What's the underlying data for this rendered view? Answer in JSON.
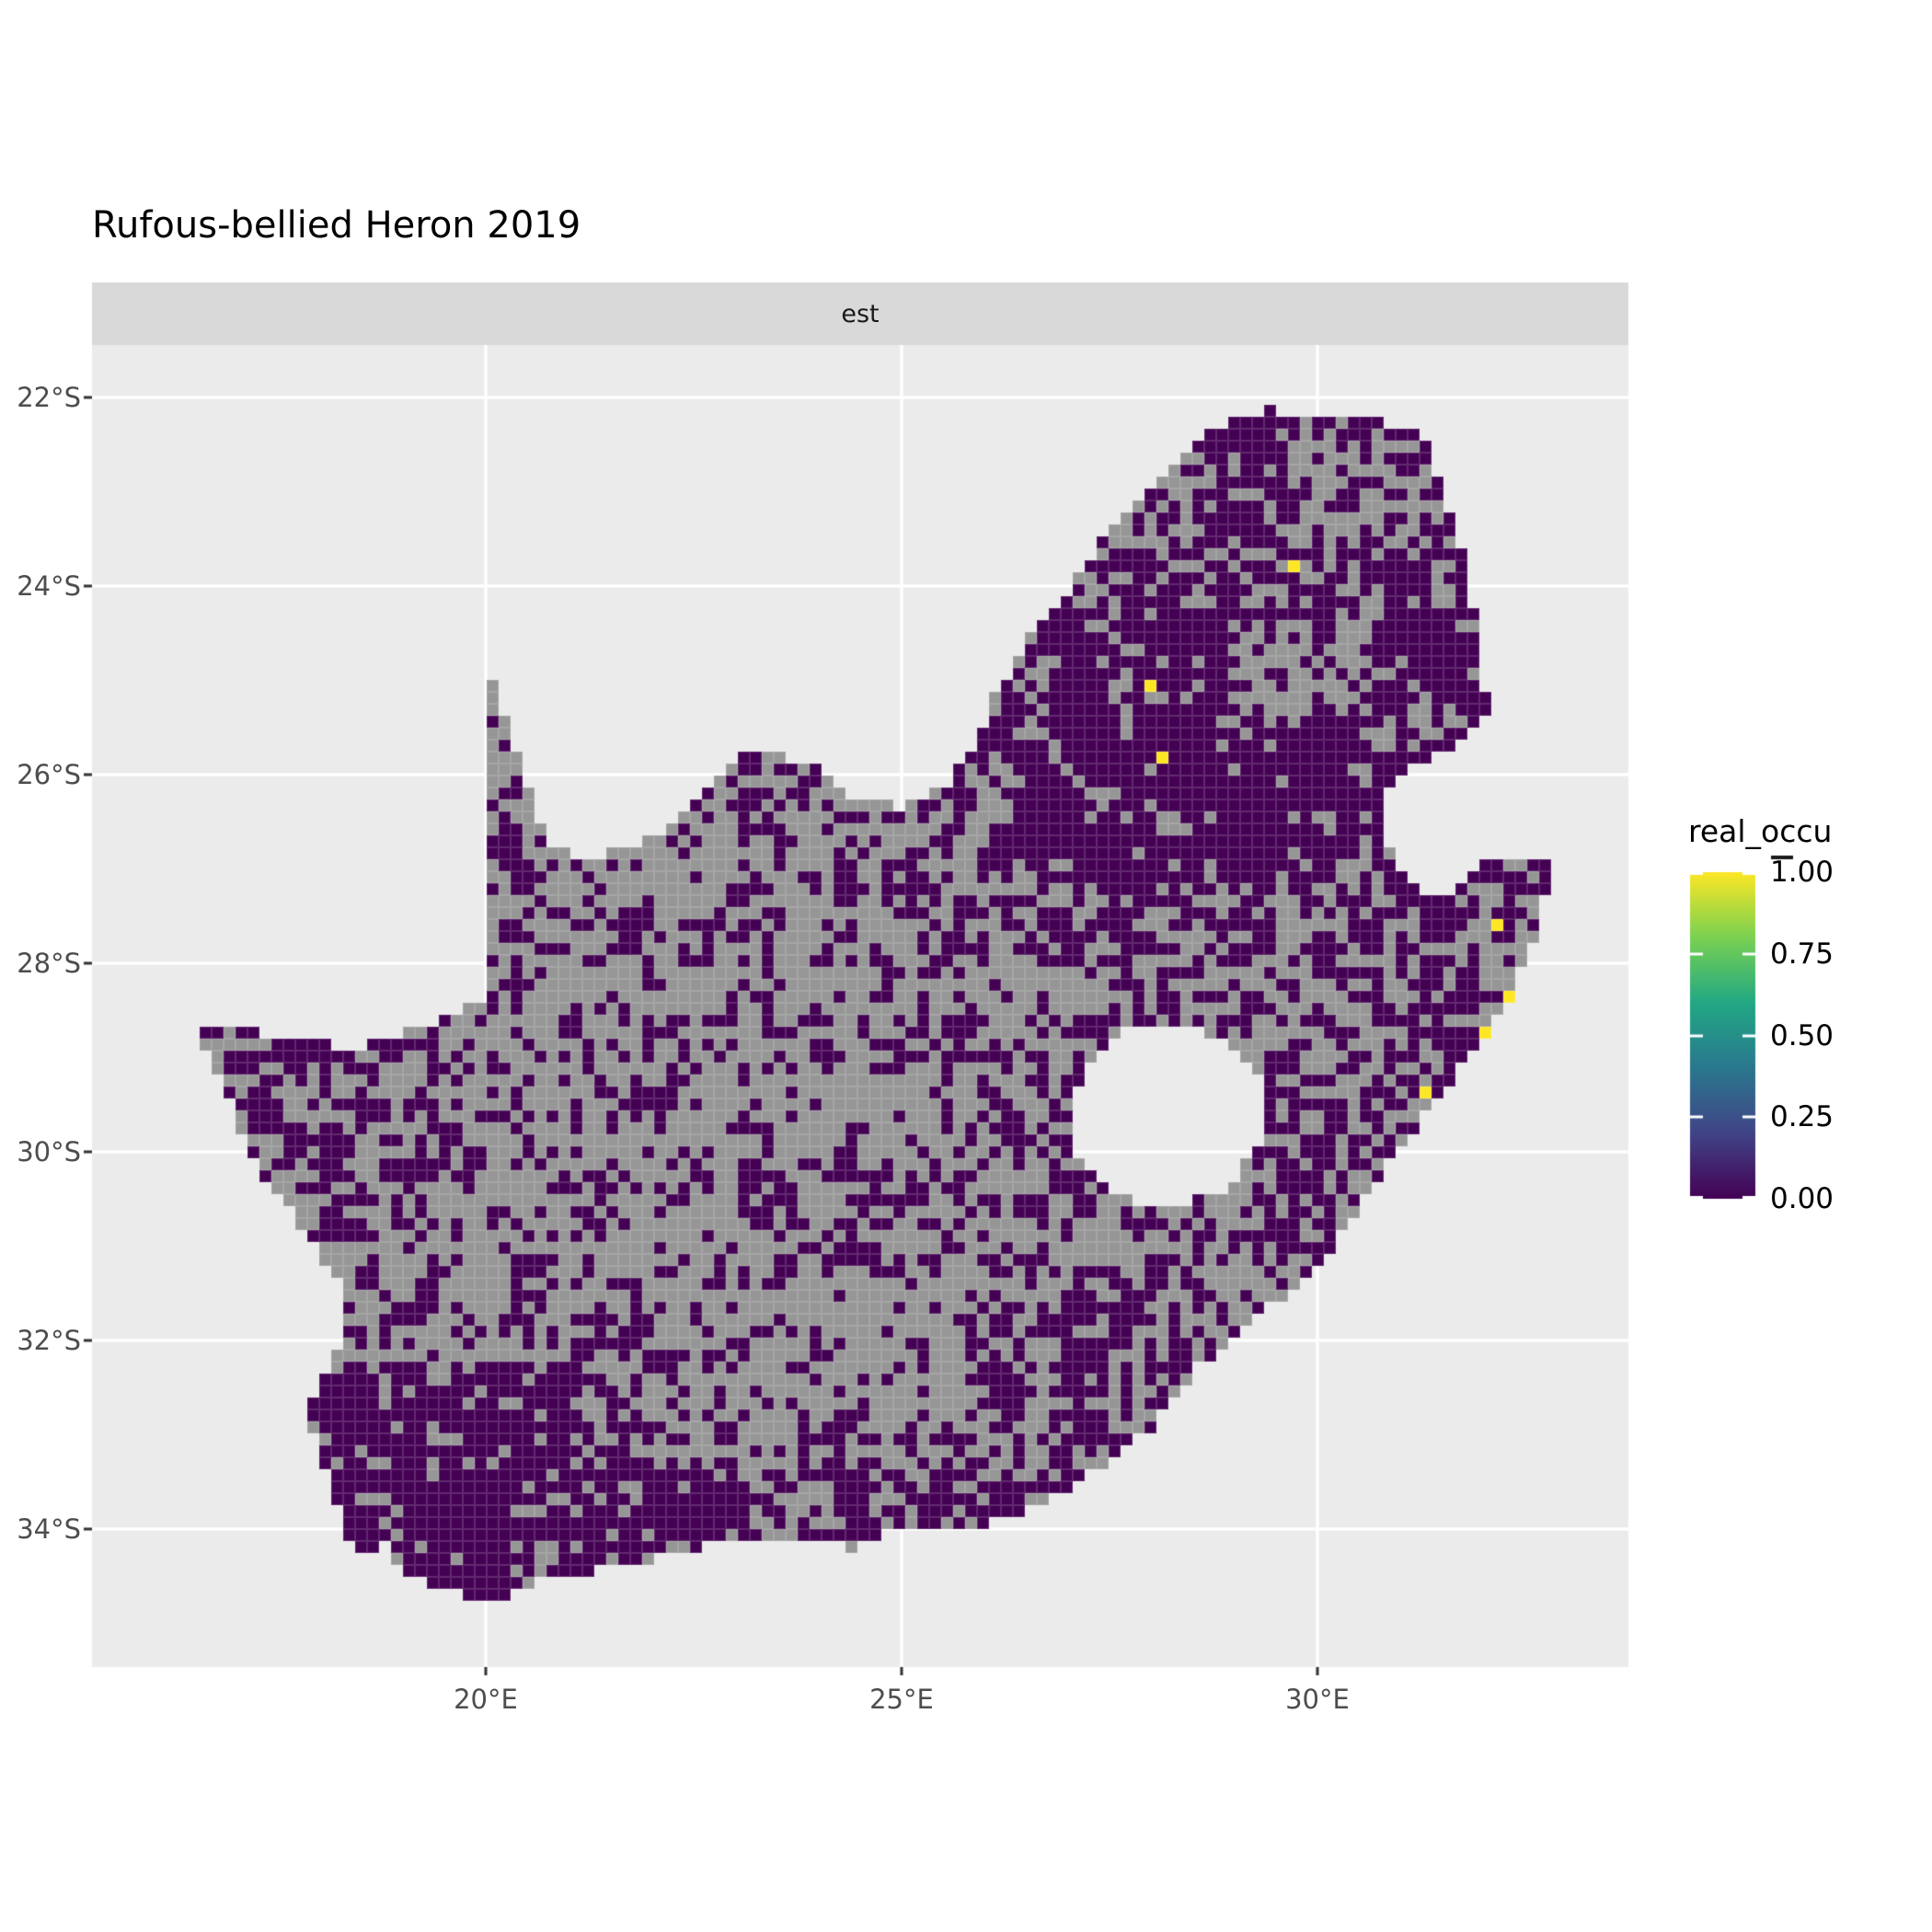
{
  "header": {
    "title": "Rufous-bellied Heron 2019"
  },
  "facet": {
    "label": "est"
  },
  "axes": {
    "x": {
      "ticks": [
        {
          "value": 20,
          "label": "20°E"
        },
        {
          "value": 25,
          "label": "25°E"
        },
        {
          "value": 30,
          "label": "30°E"
        }
      ]
    },
    "y": {
      "ticks": [
        {
          "value": -22,
          "label": "22°S"
        },
        {
          "value": -24,
          "label": "24°S"
        },
        {
          "value": -26,
          "label": "26°S"
        },
        {
          "value": -28,
          "label": "28°S"
        },
        {
          "value": -30,
          "label": "30°S"
        },
        {
          "value": -32,
          "label": "32°S"
        },
        {
          "value": -34,
          "label": "34°S"
        }
      ]
    }
  },
  "legend": {
    "title": "real_occu",
    "ticks": [
      {
        "value": 1.0,
        "label": "1.00"
      },
      {
        "value": 0.75,
        "label": "0.75"
      },
      {
        "value": 0.5,
        "label": "0.50"
      },
      {
        "value": 0.25,
        "label": "0.25"
      },
      {
        "value": 0.0,
        "label": "0.00"
      }
    ]
  },
  "colors": {
    "panel_bg": "#EBEBEB",
    "strip_bg": "#D9D9D9",
    "gridline": "#FFFFFF",
    "axis_tick": "#333333",
    "axis_text": "#4D4D4D",
    "cell_zero": "#440154",
    "cell_na": "#969696",
    "cell_one": "#FDE725",
    "viridis_stops": [
      "#440154",
      "#414487",
      "#2A788E",
      "#22A884",
      "#7AD151",
      "#FDE725"
    ]
  },
  "chart_data": {
    "type": "heatmap",
    "subtype": "raster-occupancy-map",
    "title": "Rufous-bellied Heron 2019",
    "facet_label": "est",
    "legend_title": "real_occu",
    "legend_range": [
      0.0,
      1.0
    ],
    "legend_breaks": [
      0.0,
      0.25,
      0.5,
      0.75,
      1.0
    ],
    "extent": {
      "lon": [
        15.2655,
        33.739
      ],
      "lat": [
        -35.4634,
        -21.4439
      ]
    },
    "cell_size_px": 13,
    "noise": {
      "scale_deg": 0.55,
      "amplitude": 0.4,
      "base_p": 0.45
    },
    "boundary": [
      [
        16.45,
        -28.63
      ],
      [
        17.25,
        -28.73
      ],
      [
        17.95,
        -28.86
      ],
      [
        18.6,
        -28.87
      ],
      [
        19.1,
        -28.72
      ],
      [
        19.55,
        -28.55
      ],
      [
        19.98,
        -28.4
      ],
      [
        19.98,
        -24.77
      ],
      [
        20.25,
        -25.4
      ],
      [
        20.55,
        -26.2
      ],
      [
        20.78,
        -26.8
      ],
      [
        21.15,
        -26.87
      ],
      [
        21.7,
        -26.8
      ],
      [
        22.15,
        -26.58
      ],
      [
        22.6,
        -26.15
      ],
      [
        23.0,
        -25.82
      ],
      [
        23.5,
        -25.78
      ],
      [
        24.0,
        -25.95
      ],
      [
        24.45,
        -26.25
      ],
      [
        24.95,
        -26.35
      ],
      [
        25.5,
        -26.15
      ],
      [
        25.85,
        -25.7
      ],
      [
        26.1,
        -25.2
      ],
      [
        26.45,
        -24.65
      ],
      [
        26.85,
        -24.25
      ],
      [
        27.25,
        -23.7
      ],
      [
        27.75,
        -23.2
      ],
      [
        28.25,
        -22.7
      ],
      [
        28.85,
        -22.3
      ],
      [
        29.35,
        -22.13
      ],
      [
        29.9,
        -22.16
      ],
      [
        30.45,
        -22.2
      ],
      [
        31.0,
        -22.3
      ],
      [
        31.3,
        -22.4
      ],
      [
        31.55,
        -23.1
      ],
      [
        31.75,
        -23.65
      ],
      [
        31.87,
        -24.2
      ],
      [
        31.95,
        -24.7
      ],
      [
        32.02,
        -25.1
      ],
      [
        32.07,
        -25.4
      ],
      [
        31.55,
        -25.72
      ],
      [
        31.0,
        -25.96
      ],
      [
        30.78,
        -26.3
      ],
      [
        30.82,
        -26.76
      ],
      [
        31.1,
        -27.15
      ],
      [
        31.6,
        -27.34
      ],
      [
        32.08,
        -26.88
      ],
      [
        32.55,
        -26.86
      ],
      [
        32.89,
        -26.86
      ],
      [
        32.65,
        -27.6
      ],
      [
        32.35,
        -28.3
      ],
      [
        32.05,
        -28.76
      ],
      [
        31.65,
        -29.2
      ],
      [
        31.05,
        -29.9
      ],
      [
        30.6,
        -30.42
      ],
      [
        30.25,
        -30.95
      ],
      [
        29.7,
        -31.45
      ],
      [
        29.1,
        -31.9
      ],
      [
        28.55,
        -32.3
      ],
      [
        28.0,
        -32.95
      ],
      [
        27.35,
        -33.35
      ],
      [
        26.65,
        -33.76
      ],
      [
        25.95,
        -33.95
      ],
      [
        25.0,
        -34.0
      ],
      [
        24.45,
        -34.2
      ],
      [
        23.8,
        -34.1
      ],
      [
        23.05,
        -34.1
      ],
      [
        22.4,
        -34.22
      ],
      [
        21.7,
        -34.4
      ],
      [
        20.9,
        -34.48
      ],
      [
        20.4,
        -34.66
      ],
      [
        19.98,
        -34.82
      ],
      [
        19.5,
        -34.64
      ],
      [
        18.95,
        -34.4
      ],
      [
        18.76,
        -34.1
      ],
      [
        18.44,
        -34.36
      ],
      [
        18.3,
        -33.9
      ],
      [
        18.05,
        -33.3
      ],
      [
        17.85,
        -32.76
      ],
      [
        18.25,
        -32.1
      ],
      [
        18.32,
        -31.55
      ],
      [
        17.9,
        -30.9
      ],
      [
        17.35,
        -30.3
      ],
      [
        16.95,
        -29.55
      ],
      [
        16.65,
        -28.95
      ]
    ],
    "holes": [
      [
        [
          27.0,
          -29.6
        ],
        [
          27.3,
          -28.95
        ],
        [
          27.8,
          -28.62
        ],
        [
          28.4,
          -28.62
        ],
        [
          29.0,
          -28.92
        ],
        [
          29.42,
          -29.35
        ],
        [
          29.3,
          -29.98
        ],
        [
          28.8,
          -30.45
        ],
        [
          28.1,
          -30.63
        ],
        [
          27.45,
          -30.35
        ],
        [
          27.05,
          -29.95
        ]
      ]
    ],
    "occupied_points": [
      {
        "lon": 29.7,
        "lat": -23.79,
        "value": 1.0
      },
      {
        "lon": 28.03,
        "lat": -25.12,
        "value": 1.0
      },
      {
        "lon": 28.2,
        "lat": -25.88,
        "value": 1.0
      },
      {
        "lon": 32.17,
        "lat": -27.6,
        "value": 1.0
      },
      {
        "lon": 32.35,
        "lat": -28.37,
        "value": 1.0
      },
      {
        "lon": 32.02,
        "lat": -28.79,
        "value": 1.0
      },
      {
        "lon": 31.27,
        "lat": -29.37,
        "value": 1.0
      }
    ],
    "density_regions": [
      {
        "lon": [
          19.5,
          26.6
        ],
        "lat": [
          -32.7,
          -28.0
        ],
        "p": 0.28
      },
      {
        "lon": [
          20.0,
          25.2
        ],
        "lat": [
          -28.0,
          -26.0
        ],
        "p": 0.34
      },
      {
        "lon": [
          19.9,
          21.3
        ],
        "lat": [
          -27.2,
          -24.7
        ],
        "p": 0.4
      },
      {
        "lon": [
          24.0,
          27.8
        ],
        "lat": [
          -31.8,
          -28.8
        ],
        "p": 0.3
      },
      {
        "lon": [
          26.2,
          32.3
        ],
        "lat": [
          -27.2,
          -22.0
        ],
        "p": 0.75
      },
      {
        "lon": [
          26.6,
          30.3
        ],
        "lat": [
          -27.05,
          -24.35
        ],
        "p": 0.92
      },
      {
        "lon": [
          28.9,
          30.7
        ],
        "lat": [
          -25.35,
          -24.3
        ],
        "p": 0.28
      },
      {
        "lon": [
          29.7,
          31.3
        ],
        "lat": [
          -23.7,
          -22.5
        ],
        "p": 0.45
      },
      {
        "lon": [
          26.5,
          28.5
        ],
        "lat": [
          -24.2,
          -22.4
        ],
        "p": 0.55
      },
      {
        "lon": [
          17.6,
          21.0
        ],
        "lat": [
          -34.9,
          -32.2
        ],
        "p": 0.8
      },
      {
        "lon": [
          21.0,
          27.4
        ],
        "lat": [
          -34.6,
          -33.2
        ],
        "p": 0.62
      },
      {
        "lon": [
          29.4,
          33.0
        ],
        "lat": [
          -31.3,
          -27.2
        ],
        "p": 0.58
      },
      {
        "lon": [
          26.0,
          29.6
        ],
        "lat": [
          -33.6,
          -31.2
        ],
        "p": 0.55
      },
      {
        "lon": [
          16.4,
          18.8
        ],
        "lat": [
          -32.2,
          -28.4
        ],
        "p": 0.48
      }
    ]
  }
}
